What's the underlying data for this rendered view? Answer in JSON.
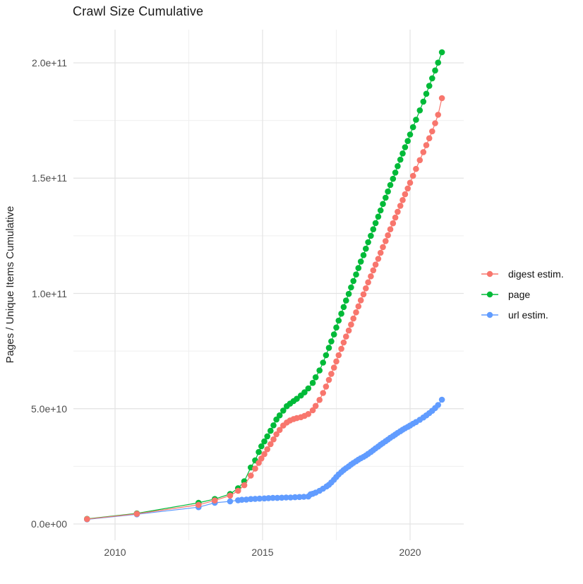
{
  "title": "Crawl Size Cumulative",
  "chart_data": {
    "type": "scatter",
    "title": "Crawl Size Cumulative",
    "xlabel": "",
    "ylabel": "Pages / Unique Items Cumulative",
    "legend_position": "right",
    "grid": true,
    "x_range": [
      2008.6,
      2021.85
    ],
    "y_range": [
      -7000000000.0,
      214000000000.0
    ],
    "value_unit": "1e9 pages / unique items (values below are in billions)",
    "x_ticks": {
      "values": [
        2010,
        2015,
        2020
      ],
      "labels": [
        "2010",
        "2015",
        "2020"
      ],
      "minor": [
        2012.5,
        2017.5
      ]
    },
    "y_ticks": {
      "values_e9": [
        0,
        50,
        100,
        150,
        200
      ],
      "labels": [
        "0.0e+00",
        "5.0e+10",
        "1.0e+11",
        "1.5e+11",
        "2.0e+11"
      ],
      "minor_e9": [
        25,
        75,
        125,
        175
      ]
    },
    "series": [
      {
        "name": "digest estim.",
        "color": "#F8766D",
        "points": [
          [
            2009.05,
            2.1
          ],
          [
            2010.74,
            4.4
          ],
          [
            2012.83,
            8.3
          ],
          [
            2013.38,
            10.2
          ],
          [
            2013.9,
            12.3
          ],
          [
            2014.17,
            14.4
          ],
          [
            2014.38,
            16.8
          ],
          [
            2014.6,
            21.0
          ],
          [
            2014.75,
            24.0
          ],
          [
            2014.87,
            26.5
          ],
          [
            2014.96,
            28.4
          ],
          [
            2015.06,
            30.3
          ],
          [
            2015.16,
            32.4
          ],
          [
            2015.27,
            34.6
          ],
          [
            2015.37,
            36.7
          ],
          [
            2015.47,
            38.9
          ],
          [
            2015.58,
            40.8
          ],
          [
            2015.7,
            42.7
          ],
          [
            2015.82,
            44.0
          ],
          [
            2015.93,
            44.9
          ],
          [
            2016.05,
            45.5
          ],
          [
            2016.16,
            45.9
          ],
          [
            2016.3,
            46.3
          ],
          [
            2016.42,
            46.9
          ],
          [
            2016.55,
            47.7
          ],
          [
            2016.7,
            49.3
          ],
          [
            2016.8,
            51.2
          ],
          [
            2016.93,
            53.8
          ],
          [
            2017.05,
            56.8
          ],
          [
            2017.15,
            59.6
          ],
          [
            2017.25,
            62.5
          ],
          [
            2017.33,
            65.1
          ],
          [
            2017.42,
            67.8
          ],
          [
            2017.5,
            70.5
          ],
          [
            2017.58,
            73.2
          ],
          [
            2017.67,
            76.0
          ],
          [
            2017.75,
            78.7
          ],
          [
            2017.83,
            81.3
          ],
          [
            2017.92,
            83.9
          ],
          [
            2018.0,
            86.5
          ],
          [
            2018.08,
            89.1
          ],
          [
            2018.17,
            91.8
          ],
          [
            2018.25,
            94.4
          ],
          [
            2018.33,
            97.0
          ],
          [
            2018.42,
            99.6
          ],
          [
            2018.5,
            102.2
          ],
          [
            2018.58,
            104.8
          ],
          [
            2018.67,
            107.4
          ],
          [
            2018.75,
            110.0
          ],
          [
            2018.83,
            112.5
          ],
          [
            2018.92,
            115.0
          ],
          [
            2019.0,
            117.6
          ],
          [
            2019.08,
            120.1
          ],
          [
            2019.17,
            122.7
          ],
          [
            2019.25,
            125.2
          ],
          [
            2019.33,
            127.8
          ],
          [
            2019.42,
            130.4
          ],
          [
            2019.5,
            132.9
          ],
          [
            2019.58,
            135.4
          ],
          [
            2019.67,
            138.0
          ],
          [
            2019.75,
            140.5
          ],
          [
            2019.83,
            143.0
          ],
          [
            2019.92,
            145.5
          ],
          [
            2020.0,
            148.0
          ],
          [
            2020.1,
            151.0
          ],
          [
            2020.2,
            154.0
          ],
          [
            2020.33,
            157.8
          ],
          [
            2020.45,
            161.3
          ],
          [
            2020.55,
            164.3
          ],
          [
            2020.65,
            167.3
          ],
          [
            2020.75,
            170.3
          ],
          [
            2020.85,
            173.8
          ],
          [
            2020.95,
            177.5
          ],
          [
            2021.08,
            184.7
          ]
        ]
      },
      {
        "name": "page",
        "color": "#00BA38",
        "points": [
          [
            2009.05,
            2.2
          ],
          [
            2010.74,
            4.6
          ],
          [
            2012.83,
            9.2
          ],
          [
            2013.38,
            10.8
          ],
          [
            2013.9,
            13.0
          ],
          [
            2014.17,
            15.5
          ],
          [
            2014.38,
            18.5
          ],
          [
            2014.6,
            24.5
          ],
          [
            2014.75,
            27.6
          ],
          [
            2014.87,
            31.2
          ],
          [
            2014.96,
            33.7
          ],
          [
            2015.06,
            35.8
          ],
          [
            2015.16,
            38.0
          ],
          [
            2015.27,
            40.4
          ],
          [
            2015.37,
            42.8
          ],
          [
            2015.47,
            45.3
          ],
          [
            2015.58,
            47.1
          ],
          [
            2015.7,
            49.2
          ],
          [
            2015.82,
            51.1
          ],
          [
            2015.93,
            52.2
          ],
          [
            2016.05,
            53.3
          ],
          [
            2016.16,
            54.3
          ],
          [
            2016.3,
            55.7
          ],
          [
            2016.42,
            57.1
          ],
          [
            2016.55,
            58.8
          ],
          [
            2016.7,
            61.2
          ],
          [
            2016.8,
            63.6
          ],
          [
            2016.93,
            66.6
          ],
          [
            2017.05,
            70.0
          ],
          [
            2017.15,
            73.2
          ],
          [
            2017.25,
            76.4
          ],
          [
            2017.33,
            79.2
          ],
          [
            2017.42,
            82.2
          ],
          [
            2017.5,
            85.2
          ],
          [
            2017.58,
            88.2
          ],
          [
            2017.67,
            91.2
          ],
          [
            2017.75,
            94.1
          ],
          [
            2017.83,
            96.9
          ],
          [
            2017.92,
            99.8
          ],
          [
            2018.0,
            102.6
          ],
          [
            2018.08,
            105.4
          ],
          [
            2018.17,
            108.2
          ],
          [
            2018.25,
            111.0
          ],
          [
            2018.33,
            113.8
          ],
          [
            2018.42,
            116.6
          ],
          [
            2018.5,
            119.4
          ],
          [
            2018.58,
            122.2
          ],
          [
            2018.67,
            125.0
          ],
          [
            2018.75,
            127.8
          ],
          [
            2018.83,
            130.5
          ],
          [
            2018.92,
            133.3
          ],
          [
            2019.0,
            136.0
          ],
          [
            2019.08,
            138.8
          ],
          [
            2019.17,
            141.5
          ],
          [
            2019.25,
            144.2
          ],
          [
            2019.33,
            147.0
          ],
          [
            2019.42,
            149.7
          ],
          [
            2019.5,
            152.4
          ],
          [
            2019.58,
            155.2
          ],
          [
            2019.67,
            158.0
          ],
          [
            2019.75,
            160.7
          ],
          [
            2019.83,
            163.4
          ],
          [
            2019.92,
            166.1
          ],
          [
            2020.0,
            168.9
          ],
          [
            2020.1,
            172.1
          ],
          [
            2020.2,
            175.3
          ],
          [
            2020.33,
            179.4
          ],
          [
            2020.45,
            183.2
          ],
          [
            2020.55,
            186.6
          ],
          [
            2020.65,
            190.0
          ],
          [
            2020.75,
            193.3
          ],
          [
            2020.85,
            196.7
          ],
          [
            2020.95,
            200.1
          ],
          [
            2021.08,
            204.6
          ]
        ]
      },
      {
        "name": "url estim.",
        "color": "#619CFF",
        "points": [
          [
            2009.05,
            2.0
          ],
          [
            2010.74,
            4.2
          ],
          [
            2012.83,
            7.3
          ],
          [
            2013.38,
            9.2
          ],
          [
            2013.9,
            9.8
          ],
          [
            2014.17,
            10.3
          ],
          [
            2014.3,
            10.5
          ],
          [
            2014.45,
            10.6
          ],
          [
            2014.6,
            10.8
          ],
          [
            2014.75,
            10.9
          ],
          [
            2014.9,
            11.0
          ],
          [
            2015.06,
            11.1
          ],
          [
            2015.2,
            11.2
          ],
          [
            2015.35,
            11.3
          ],
          [
            2015.5,
            11.3
          ],
          [
            2015.65,
            11.4
          ],
          [
            2015.8,
            11.5
          ],
          [
            2015.95,
            11.5
          ],
          [
            2016.1,
            11.6
          ],
          [
            2016.25,
            11.7
          ],
          [
            2016.4,
            11.8
          ],
          [
            2016.55,
            11.9
          ],
          [
            2016.63,
            12.9
          ],
          [
            2016.7,
            13.1
          ],
          [
            2016.8,
            13.6
          ],
          [
            2016.93,
            14.4
          ],
          [
            2017.05,
            15.3
          ],
          [
            2017.17,
            16.3
          ],
          [
            2017.25,
            17.0
          ],
          [
            2017.33,
            18.0
          ],
          [
            2017.42,
            19.2
          ],
          [
            2017.5,
            20.4
          ],
          [
            2017.58,
            21.5
          ],
          [
            2017.67,
            22.5
          ],
          [
            2017.75,
            23.4
          ],
          [
            2017.83,
            24.2
          ],
          [
            2017.92,
            25.0
          ],
          [
            2018.0,
            25.8
          ],
          [
            2018.08,
            26.5
          ],
          [
            2018.17,
            27.2
          ],
          [
            2018.25,
            27.9
          ],
          [
            2018.33,
            28.5
          ],
          [
            2018.42,
            29.1
          ],
          [
            2018.5,
            29.7
          ],
          [
            2018.58,
            30.4
          ],
          [
            2018.67,
            31.2
          ],
          [
            2018.75,
            32.0
          ],
          [
            2018.83,
            32.8
          ],
          [
            2018.92,
            33.6
          ],
          [
            2019.0,
            34.4
          ],
          [
            2019.08,
            35.1
          ],
          [
            2019.17,
            35.9
          ],
          [
            2019.25,
            36.6
          ],
          [
            2019.33,
            37.4
          ],
          [
            2019.42,
            38.1
          ],
          [
            2019.5,
            38.8
          ],
          [
            2019.58,
            39.5
          ],
          [
            2019.67,
            40.2
          ],
          [
            2019.75,
            40.9
          ],
          [
            2019.83,
            41.5
          ],
          [
            2019.92,
            42.1
          ],
          [
            2020.0,
            42.7
          ],
          [
            2020.1,
            43.5
          ],
          [
            2020.2,
            44.2
          ],
          [
            2020.33,
            45.2
          ],
          [
            2020.45,
            46.2
          ],
          [
            2020.55,
            47.1
          ],
          [
            2020.65,
            48.1
          ],
          [
            2020.75,
            49.1
          ],
          [
            2020.85,
            50.3
          ],
          [
            2020.95,
            51.6
          ],
          [
            2021.08,
            53.9
          ]
        ]
      }
    ]
  }
}
